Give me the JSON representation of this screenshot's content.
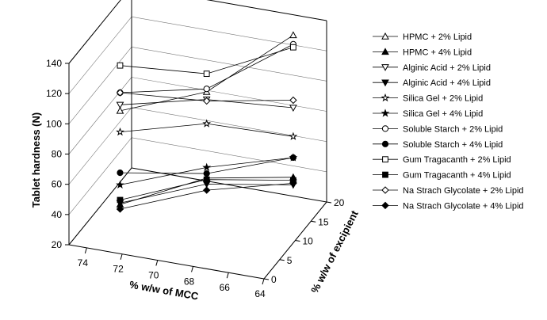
{
  "chart_data": {
    "type": "line",
    "projection": "3d",
    "xlabel": "% w/w of MCC",
    "ylabel": "Tablet hardness (N)",
    "zlabel": "% w/w of excipient",
    "x_ticks": [
      "74",
      "72",
      "70",
      "68",
      "66",
      "64"
    ],
    "y_ticks": [
      "20",
      "40",
      "60",
      "80",
      "100",
      "120",
      "140"
    ],
    "z_ticks": [
      "0",
      "5",
      "10",
      "15",
      "20"
    ],
    "xlim": [
      75,
      64
    ],
    "ylim": [
      20,
      140
    ],
    "zlim": [
      0,
      20
    ],
    "grid": true,
    "legend_position": "right",
    "series": [
      {
        "name": "HPMC + 2% Lipid",
        "marker": "triangle-up-open",
        "points": [
          [
            73,
            100,
            5
          ],
          [
            69,
            108,
            10
          ],
          [
            65,
            141,
            15
          ]
        ]
      },
      {
        "name": "HPMC + 4% Lipid",
        "marker": "triangle-up-filled",
        "points": [
          [
            73,
            38,
            5
          ],
          [
            69,
            51,
            10
          ],
          [
            65,
            47,
            15
          ]
        ]
      },
      {
        "name": "Alginic Acid + 2% Lipid",
        "marker": "triangle-down-open",
        "points": [
          [
            73,
            104,
            5
          ],
          [
            69,
            103,
            10
          ],
          [
            65,
            93,
            15
          ]
        ]
      },
      {
        "name": "Alginic Acid + 4% Lipid",
        "marker": "triangle-down-filled",
        "points": [
          [
            73,
            39,
            5
          ],
          [
            69,
            47,
            10
          ],
          [
            65,
            42,
            15
          ]
        ]
      },
      {
        "name": "Silica Gel + 2% Lipid",
        "marker": "star-open",
        "points": [
          [
            73,
            86,
            5
          ],
          [
            69,
            87,
            10
          ],
          [
            65,
            74,
            15
          ]
        ]
      },
      {
        "name": "Silica Gel + 4% Lipid",
        "marker": "star-filled",
        "points": [
          [
            73,
            51,
            5
          ],
          [
            69,
            58,
            10
          ],
          [
            65,
            60,
            15
          ]
        ]
      },
      {
        "name": "Soluble Starch + 2% Lipid",
        "marker": "circle-open",
        "points": [
          [
            73,
            112,
            5
          ],
          [
            69,
            110,
            10
          ],
          [
            65,
            135,
            15
          ]
        ]
      },
      {
        "name": "Soluble Starch + 4% Lipid",
        "marker": "circle-filled",
        "points": [
          [
            73,
            59,
            5
          ],
          [
            69,
            54,
            10
          ],
          [
            65,
            60,
            15
          ]
        ]
      },
      {
        "name": "Gum Tragacanth + 2% Lipid",
        "marker": "square-open",
        "points": [
          [
            73,
            130,
            5
          ],
          [
            69,
            120,
            10
          ],
          [
            65,
            133,
            15
          ]
        ]
      },
      {
        "name": "Gum Tragacanth + 4% Lipid",
        "marker": "square-filled",
        "points": [
          [
            73,
            41,
            5
          ],
          [
            69,
            50,
            10
          ],
          [
            65,
            45,
            15
          ]
        ]
      },
      {
        "name": "Na Strach Glycolate + 2% Lipid",
        "marker": "diamond-open",
        "points": [
          [
            73,
            112,
            5
          ],
          [
            69,
            102,
            10
          ],
          [
            65,
            98,
            15
          ]
        ]
      },
      {
        "name": "Na Strach Glycolate + 4% Lipid",
        "marker": "diamond-filled",
        "points": [
          [
            73,
            35,
            5
          ],
          [
            69,
            43,
            10
          ],
          [
            65,
            43,
            15
          ]
        ]
      }
    ]
  }
}
